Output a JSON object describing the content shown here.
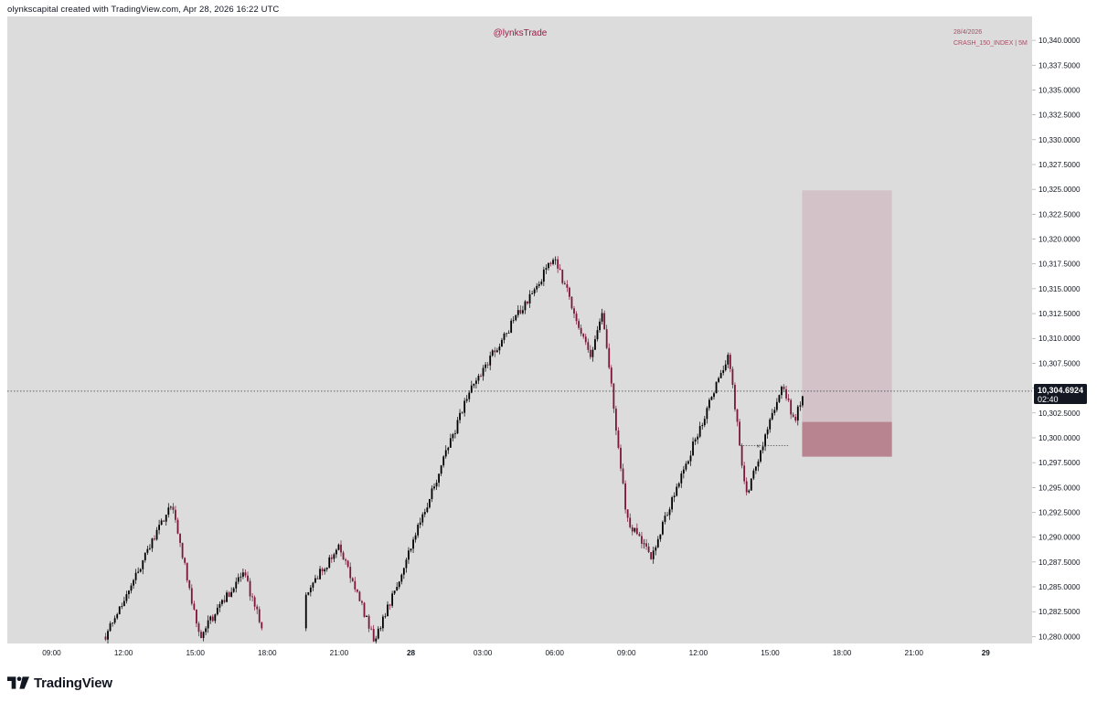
{
  "header": {
    "text": "olynkscapital created with TradingView.com, Apr 28, 2026 16:22 UTC"
  },
  "watermark": {
    "handle": "@lynksTrade"
  },
  "info": {
    "date": "28/4/2026",
    "symbol_line": "CRASH_150_INDEX | 5M"
  },
  "last_price": {
    "value": "10,304.6924",
    "countdown": "02:40"
  },
  "footer": {
    "brand": "TradingView"
  },
  "colors": {
    "plot_bg": "#dcdcdc",
    "up_candle": "#000000",
    "down_candle": "#7b1636",
    "accent": "#b0485f",
    "target_zone": "#d3c3c9",
    "stop_zone": "#b8848f"
  },
  "chart_data": {
    "type": "candlestick",
    "title": "CRASH_150_INDEX | 5M",
    "xlabel": "",
    "ylabel": "",
    "x_ticks": [
      "09:00",
      "12:00",
      "15:00",
      "18:00",
      "21:00",
      "28",
      "03:00",
      "06:00",
      "09:00",
      "12:00",
      "15:00",
      "18:00",
      "21:00",
      "29"
    ],
    "y_ticks": [
      "10,340.0000",
      "10,337.5000",
      "10,335.0000",
      "10,332.5000",
      "10,330.0000",
      "10,327.5000",
      "10,325.0000",
      "10,322.5000",
      "10,320.0000",
      "10,317.5000",
      "10,315.0000",
      "10,312.5000",
      "10,310.0000",
      "10,307.5000",
      "10,305.0000",
      "10,302.5000",
      "10,300.0000",
      "10,297.5000",
      "10,295.0000",
      "10,292.5000",
      "10,290.0000",
      "10,287.5000",
      "10,285.0000",
      "10,282.5000",
      "10,280.0000"
    ],
    "ylim": [
      10279.3,
      10342.4
    ],
    "grid": false,
    "last_price": 10304.6924,
    "time_markers": [
      "Apr 27 12:00",
      "Apr 27 15:00",
      "Apr 27 21:00",
      "Apr 28 03:00",
      "Apr 28 06:00",
      "Apr 28 09:00",
      "Apr 28 12:00",
      "Apr 28 14:00",
      "Apr 28 16:20"
    ],
    "price_path": [
      10280.0,
      10293.5,
      10280.0,
      10286.5,
      10279.3,
      10289.0,
      10279.5,
      10305.0,
      10318.2,
      10308.0,
      10312.7,
      10292.0,
      10288.0,
      10308.5,
      10294.0,
      10305.5,
      10301.5,
      10304.7
    ],
    "position": {
      "direction": "short",
      "entry": 10301.6,
      "stop_loss": 10298.1,
      "take_profit": 10324.9,
      "target_zone_price_range": [
        10301.6,
        10324.9
      ],
      "stop_zone_price_range": [
        10298.1,
        10301.6
      ],
      "time_range": [
        "Apr 28 16:20",
        "Apr 28 20:05"
      ]
    }
  }
}
